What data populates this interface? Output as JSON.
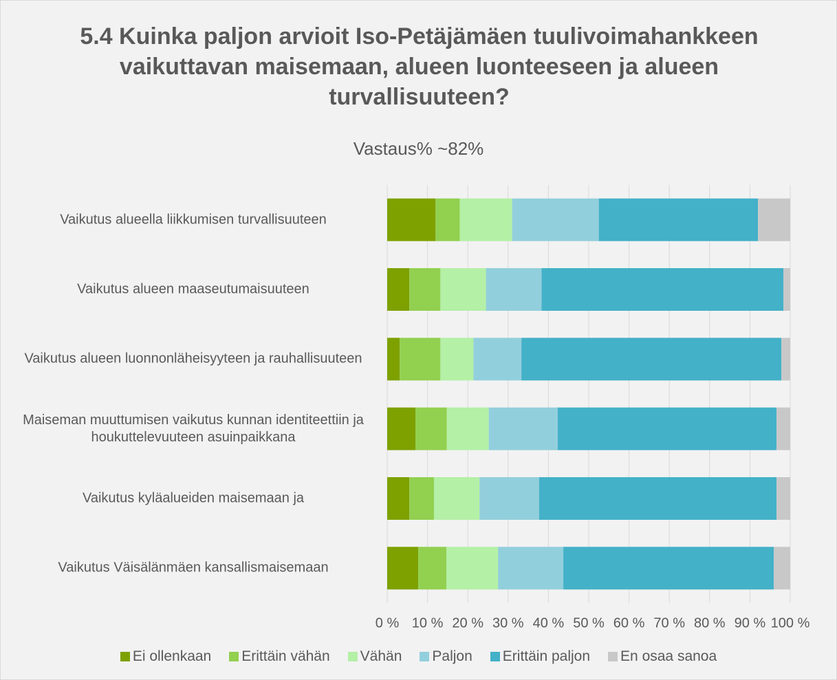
{
  "chart_data": {
    "type": "stacked_bar_horizontal",
    "title": "5.4 Kuinka paljon arvioit Iso-Petäjämäen tuulivoimahankkeen vaikuttavan maisemaan, alueen luonteeseen ja alueen turvallisuuteen?",
    "subtitle": "Vastaus% ~82%",
    "categories": [
      "Vaikutus alueella liikkumisen turvallisuuteen",
      "Vaikutus alueen maaseutumaisuuteen",
      "Vaikutus alueen luonnonläheisyyteen ja rauhallisuuteen",
      "Maiseman muuttumisen vaikutus kunnan identiteettiin ja houkuttelevuuteen asuinpaikkana",
      "Vaikutus kyläalueiden maisemaan ja",
      "Vaikutus Väisälänmäen kansallismaisemaan"
    ],
    "series": [
      {
        "name": "Ei ollenkaan",
        "color": "#7ea100",
        "values": [
          12,
          5.5,
          3.1,
          7,
          5.5,
          7.7
        ]
      },
      {
        "name": "Erittäin vähän",
        "color": "#92d050",
        "values": [
          6,
          7.7,
          10.1,
          7.8,
          6.1,
          7
        ]
      },
      {
        "name": "Vähän",
        "color": "#b4f0a6",
        "values": [
          13,
          11.3,
          8.2,
          10.4,
          11.3,
          12.8
        ]
      },
      {
        "name": "Paljon",
        "color": "#92cfdc",
        "values": [
          21.5,
          13.8,
          11.9,
          17.1,
          14.8,
          16.2
        ]
      },
      {
        "name": "Erittäin paljon",
        "color": "#43b1c8",
        "values": [
          39.5,
          60,
          64.5,
          54.3,
          58.9,
          52.2
        ]
      },
      {
        "name": "En osaa sanoa",
        "color": "#c8c8c8",
        "values": [
          8,
          1.7,
          2.2,
          3.4,
          3.4,
          4.1
        ]
      }
    ],
    "xlim": [
      0,
      100
    ],
    "xticks": [
      {
        "value": 0,
        "label": "0 %"
      },
      {
        "value": 10,
        "label": "10 %"
      },
      {
        "value": 20,
        "label": "20 %"
      },
      {
        "value": 30,
        "label": "30 %"
      },
      {
        "value": 40,
        "label": "40 %"
      },
      {
        "value": 50,
        "label": "50 %"
      },
      {
        "value": 60,
        "label": "60 %"
      },
      {
        "value": 70,
        "label": "70 %"
      },
      {
        "value": 80,
        "label": "80 %"
      },
      {
        "value": 90,
        "label": "90 %"
      },
      {
        "value": 100,
        "label": "100 %"
      }
    ],
    "grid": true,
    "legend": "bottom"
  }
}
